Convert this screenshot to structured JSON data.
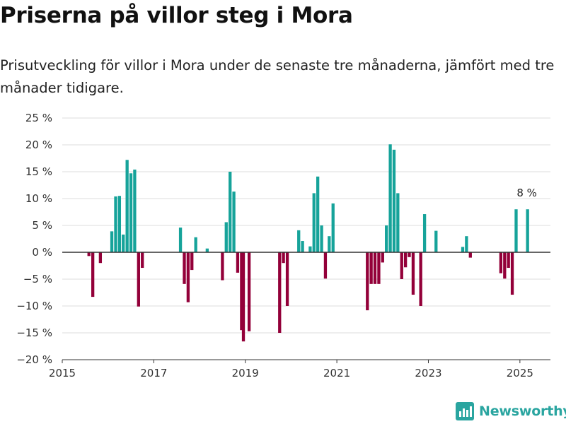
{
  "title": "Priserna på villor steg i Mora",
  "subtitle": "Prisutveckling för villor i Mora under de senaste tre månaderna, jämfört med tre månader tidigare.",
  "brand": "Newsworthy",
  "colors": {
    "positive": "#16a39a",
    "negative": "#930039",
    "zero_line": "#333333",
    "grid": "#dddddd",
    "brand": "#2aa5a0"
  },
  "chart_data": {
    "type": "bar",
    "y_unit": "%",
    "ylim": [
      -20,
      25
    ],
    "y_ticks": [
      25,
      20,
      15,
      10,
      5,
      0,
      -5,
      -10,
      -15,
      -20
    ],
    "y_tick_labels": [
      "25 %",
      "20 %",
      "15 %",
      "10 %",
      "5 %",
      "0 %",
      "−5 %",
      "−10 %",
      "−15 %",
      "−20 %"
    ],
    "x_range": [
      2015.0,
      2025.667
    ],
    "x_ticks": [
      2015,
      2017,
      2019,
      2021,
      2023,
      2025
    ],
    "x_tick_labels": [
      "2015",
      "2017",
      "2019",
      "2021",
      "2023",
      "2025"
    ],
    "grid": true,
    "annotation": {
      "text": "8 %",
      "x": 2025.167,
      "y": 8
    },
    "x": [
      2015.583,
      2015.667,
      2015.833,
      2016.083,
      2016.167,
      2016.25,
      2016.333,
      2016.417,
      2016.5,
      2016.583,
      2016.667,
      2016.75,
      2017.583,
      2017.667,
      2017.75,
      2017.833,
      2017.917,
      2018.167,
      2018.5,
      2018.583,
      2018.667,
      2018.75,
      2018.833,
      2018.917,
      2018.958,
      2019.083,
      2019.75,
      2019.833,
      2019.917,
      2020.167,
      2020.25,
      2020.417,
      2020.5,
      2020.583,
      2020.667,
      2020.75,
      2020.833,
      2020.917,
      2021.667,
      2021.75,
      2021.833,
      2021.917,
      2022.0,
      2022.083,
      2022.167,
      2022.25,
      2022.333,
      2022.417,
      2022.5,
      2022.583,
      2022.667,
      2022.833,
      2022.917,
      2023.167,
      2023.75,
      2023.833,
      2023.917,
      2024.583,
      2024.667,
      2024.75,
      2024.833,
      2024.917,
      2025.167
    ],
    "values": [
      -0.7,
      -8.3,
      -2.0,
      3.9,
      10.4,
      10.5,
      3.3,
      17.2,
      14.7,
      15.4,
      -10.1,
      -2.9,
      4.6,
      -5.9,
      -9.3,
      -3.3,
      2.8,
      0.7,
      -5.2,
      5.6,
      15.0,
      11.3,
      -3.8,
      -14.5,
      -16.6,
      -14.7,
      -15.0,
      -2.0,
      -10.0,
      4.1,
      2.1,
      1.1,
      11.0,
      14.1,
      5.0,
      -4.9,
      3.0,
      9.1,
      -10.8,
      -5.9,
      -5.9,
      -5.9,
      -1.9,
      5.0,
      20.1,
      19.1,
      11.0,
      -5.0,
      -2.8,
      -0.9,
      -7.9,
      -10.0,
      7.1,
      4.0,
      1.0,
      3.0,
      -1.0,
      -3.9,
      -4.9,
      -2.9,
      -7.9,
      8.0,
      8.0
    ]
  }
}
